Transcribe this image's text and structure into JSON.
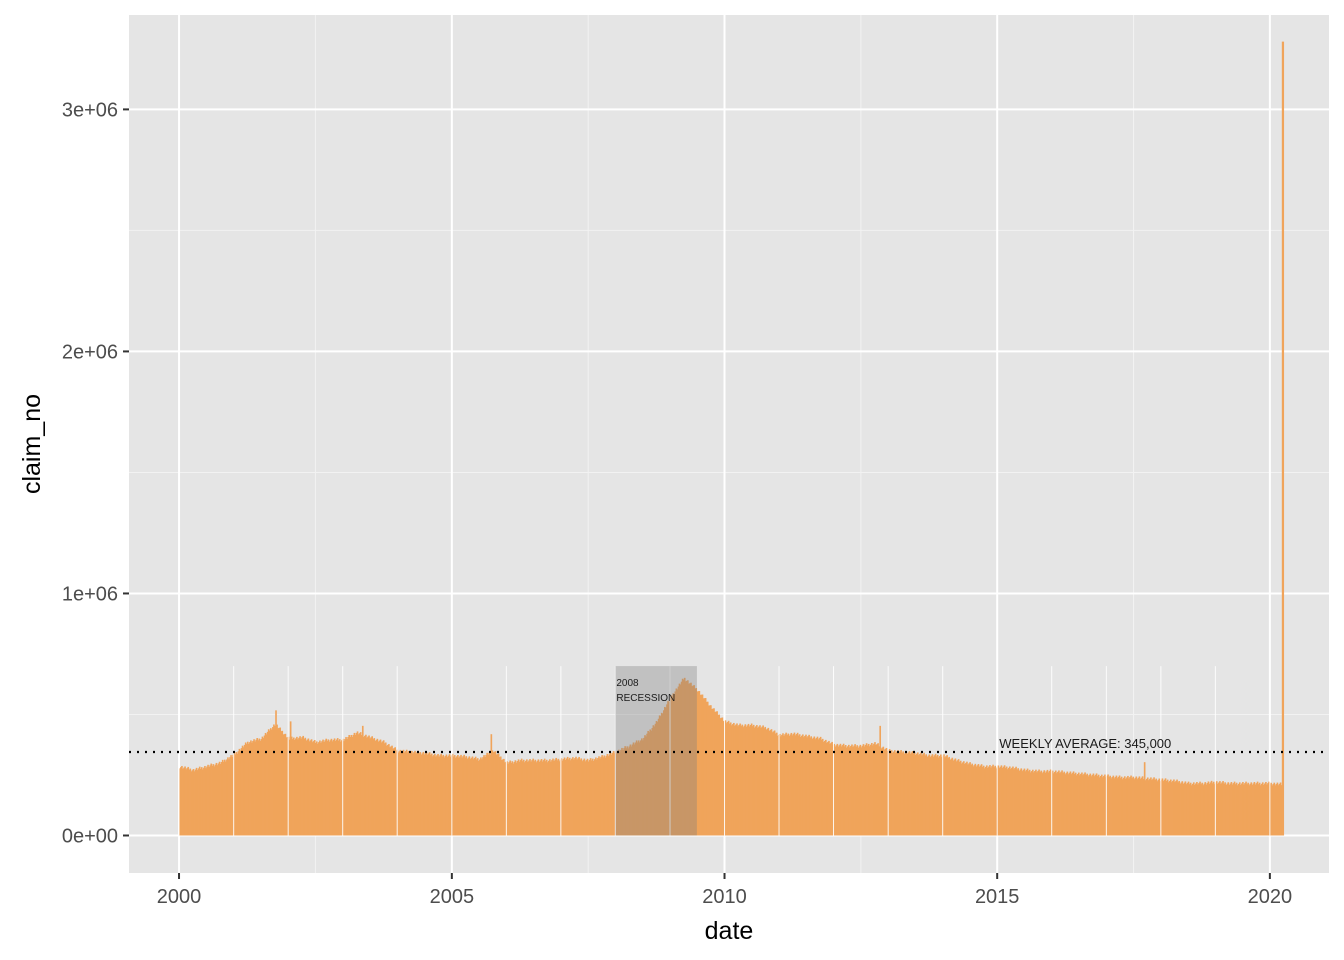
{
  "chart_data": {
    "type": "bar",
    "xlabel": "date",
    "ylabel": "claim_no",
    "x_range": [
      "1999-01-31",
      "2021-01-31"
    ],
    "ylim": [
      -155000,
      3390000
    ],
    "x_ticks": [
      {
        "date": "2000-01-01",
        "label": "2000"
      },
      {
        "date": "2005-01-01",
        "label": "2005"
      },
      {
        "date": "2010-01-01",
        "label": "2010"
      },
      {
        "date": "2015-01-01",
        "label": "2015"
      },
      {
        "date": "2020-01-01",
        "label": "2020"
      }
    ],
    "y_ticks": [
      {
        "value": 0,
        "label": "0e+00"
      },
      {
        "value": 1000000,
        "label": "1e+06"
      },
      {
        "value": 2000000,
        "label": "2e+06"
      },
      {
        "value": 3000000,
        "label": "3e+06"
      }
    ],
    "grid": true,
    "bar_color": "#f0a45b",
    "series": [
      {
        "frequency": "weekly",
        "points": [
          [
            "2000-01-01",
            285000
          ],
          [
            "2000-04-01",
            270000
          ],
          [
            "2000-07-01",
            285000
          ],
          [
            "2000-10-01",
            300000
          ],
          [
            "2001-01-01",
            335000
          ],
          [
            "2001-04-01",
            385000
          ],
          [
            "2001-07-01",
            400000
          ],
          [
            "2001-10-01",
            460000
          ],
          [
            "2002-01-01",
            400000
          ],
          [
            "2002-04-01",
            405000
          ],
          [
            "2002-07-01",
            385000
          ],
          [
            "2002-10-01",
            395000
          ],
          [
            "2003-01-01",
            395000
          ],
          [
            "2003-04-01",
            425000
          ],
          [
            "2003-07-01",
            405000
          ],
          [
            "2003-10-01",
            385000
          ],
          [
            "2004-01-01",
            350000
          ],
          [
            "2004-04-01",
            345000
          ],
          [
            "2004-07-01",
            340000
          ],
          [
            "2004-10-01",
            330000
          ],
          [
            "2005-01-01",
            330000
          ],
          [
            "2005-04-01",
            325000
          ],
          [
            "2005-07-01",
            315000
          ],
          [
            "2005-10-01",
            350000
          ],
          [
            "2006-01-01",
            300000
          ],
          [
            "2006-04-01",
            310000
          ],
          [
            "2006-07-01",
            310000
          ],
          [
            "2006-10-01",
            310000
          ],
          [
            "2007-01-01",
            315000
          ],
          [
            "2007-04-01",
            320000
          ],
          [
            "2007-07-01",
            310000
          ],
          [
            "2007-10-01",
            325000
          ],
          [
            "2008-01-01",
            345000
          ],
          [
            "2008-04-01",
            370000
          ],
          [
            "2008-07-01",
            400000
          ],
          [
            "2008-10-01",
            470000
          ],
          [
            "2009-01-01",
            570000
          ],
          [
            "2009-04-01",
            650000
          ],
          [
            "2009-07-01",
            600000
          ],
          [
            "2009-10-01",
            530000
          ],
          [
            "2010-01-01",
            470000
          ],
          [
            "2010-04-01",
            455000
          ],
          [
            "2010-07-01",
            455000
          ],
          [
            "2010-10-01",
            445000
          ],
          [
            "2011-01-01",
            415000
          ],
          [
            "2011-04-01",
            420000
          ],
          [
            "2011-07-01",
            410000
          ],
          [
            "2011-10-01",
            400000
          ],
          [
            "2012-01-01",
            375000
          ],
          [
            "2012-04-01",
            370000
          ],
          [
            "2012-07-01",
            370000
          ],
          [
            "2012-10-01",
            380000
          ],
          [
            "2013-01-01",
            350000
          ],
          [
            "2013-04-01",
            345000
          ],
          [
            "2013-07-01",
            340000
          ],
          [
            "2013-10-01",
            330000
          ],
          [
            "2014-01-01",
            330000
          ],
          [
            "2014-04-01",
            310000
          ],
          [
            "2014-07-01",
            295000
          ],
          [
            "2014-10-01",
            285000
          ],
          [
            "2015-01-01",
            285000
          ],
          [
            "2015-04-01",
            280000
          ],
          [
            "2015-07-01",
            270000
          ],
          [
            "2015-10-01",
            265000
          ],
          [
            "2016-01-01",
            265000
          ],
          [
            "2016-04-01",
            260000
          ],
          [
            "2016-07-01",
            255000
          ],
          [
            "2016-10-01",
            250000
          ],
          [
            "2017-01-01",
            245000
          ],
          [
            "2017-04-01",
            240000
          ],
          [
            "2017-07-01",
            240000
          ],
          [
            "2017-10-01",
            235000
          ],
          [
            "2018-01-01",
            230000
          ],
          [
            "2018-04-01",
            225000
          ],
          [
            "2018-07-01",
            215000
          ],
          [
            "2018-10-01",
            215000
          ],
          [
            "2019-01-01",
            220000
          ],
          [
            "2019-04-01",
            215000
          ],
          [
            "2019-07-01",
            215000
          ],
          [
            "2019-10-01",
            215000
          ],
          [
            "2020-01-01",
            215000
          ],
          [
            "2020-03-14",
            211000
          ],
          [
            "2020-03-21",
            3280000
          ]
        ],
        "spikes": [
          [
            "2001-10-06",
            517000
          ],
          [
            "2002-01-12",
            470000
          ],
          [
            "2003-05-10",
            450000
          ],
          [
            "2005-09-17",
            420000
          ],
          [
            "2012-11-03",
            450000
          ],
          [
            "2017-09-09",
            300000
          ]
        ]
      }
    ],
    "annotations": [
      {
        "type": "shaded_region",
        "x_start": "2008-01-01",
        "x_end": "2009-06-30",
        "y_top": 700000,
        "label_lines": [
          "2008",
          "RECESSION"
        ]
      },
      {
        "type": "hline",
        "y": 345000,
        "style": "dotted",
        "label": "WEEKLY AVERAGE: 345,000",
        "label_x": "2015-01-15"
      }
    ]
  }
}
